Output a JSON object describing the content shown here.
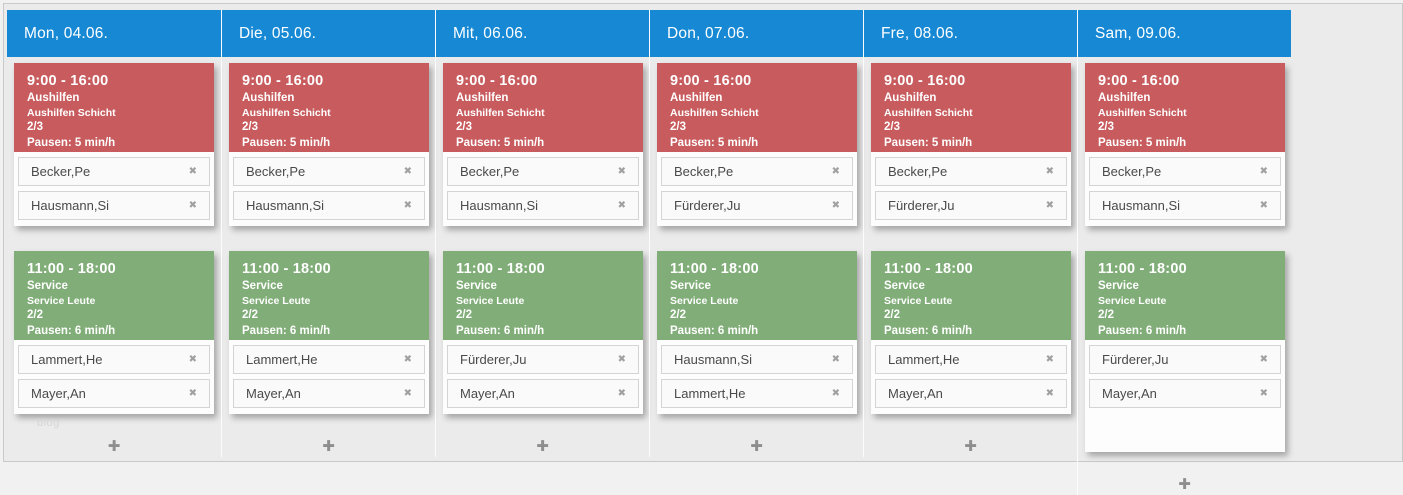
{
  "colors": {
    "header_blue": "#1789d4",
    "shift_red": "#c85b5d",
    "shift_green": "#80ad78",
    "page_bg": "#ebebeb"
  },
  "icons": {
    "remove_icon": "✖",
    "add_icon": "✚"
  },
  "watermark": "blog",
  "columns": [
    {
      "header": "Mon, 04.06.",
      "shifts": [
        {
          "time": "9:00 - 16:00",
          "group": "Aushilfen",
          "subgroup": "Aushilfen Schicht",
          "occupancy": "2/3",
          "breaks": "Pausen: 5 min/h",
          "employees": [
            "Becker,Pe",
            "Hausmann,Si"
          ]
        },
        {
          "time": "11:00 - 18:00",
          "group": "Service",
          "subgroup": "Service Leute",
          "occupancy": "2/2",
          "breaks": "Pausen: 6 min/h",
          "employees": [
            "Lammert,He",
            "Mayer,An"
          ]
        }
      ]
    },
    {
      "header": "Die, 05.06.",
      "shifts": [
        {
          "time": "9:00 - 16:00",
          "group": "Aushilfen",
          "subgroup": "Aushilfen Schicht",
          "occupancy": "2/3",
          "breaks": "Pausen: 5 min/h",
          "employees": [
            "Becker,Pe",
            "Hausmann,Si"
          ]
        },
        {
          "time": "11:00 - 18:00",
          "group": "Service",
          "subgroup": "Service Leute",
          "occupancy": "2/2",
          "breaks": "Pausen: 6 min/h",
          "employees": [
            "Lammert,He",
            "Mayer,An"
          ]
        }
      ]
    },
    {
      "header": "Mit, 06.06.",
      "shifts": [
        {
          "time": "9:00 - 16:00",
          "group": "Aushilfen",
          "subgroup": "Aushilfen Schicht",
          "occupancy": "2/3",
          "breaks": "Pausen: 5 min/h",
          "employees": [
            "Becker,Pe",
            "Hausmann,Si"
          ]
        },
        {
          "time": "11:00 - 18:00",
          "group": "Service",
          "subgroup": "Service Leute",
          "occupancy": "2/2",
          "breaks": "Pausen: 6 min/h",
          "employees": [
            "Fürderer,Ju",
            "Mayer,An"
          ]
        }
      ]
    },
    {
      "header": "Don, 07.06.",
      "shifts": [
        {
          "time": "9:00 - 16:00",
          "group": "Aushilfen",
          "subgroup": "Aushilfen Schicht",
          "occupancy": "2/3",
          "breaks": "Pausen: 5 min/h",
          "employees": [
            "Becker,Pe",
            "Fürderer,Ju"
          ]
        },
        {
          "time": "11:00 - 18:00",
          "group": "Service",
          "subgroup": "Service Leute",
          "occupancy": "2/2",
          "breaks": "Pausen: 6 min/h",
          "employees": [
            "Hausmann,Si",
            "Lammert,He"
          ]
        }
      ]
    },
    {
      "header": "Fre, 08.06.",
      "shifts": [
        {
          "time": "9:00 - 16:00",
          "group": "Aushilfen",
          "subgroup": "Aushilfen Schicht",
          "occupancy": "2/3",
          "breaks": "Pausen: 5 min/h",
          "employees": [
            "Becker,Pe",
            "Fürderer,Ju"
          ]
        },
        {
          "time": "11:00 - 18:00",
          "group": "Service",
          "subgroup": "Service Leute",
          "occupancy": "2/2",
          "breaks": "Pausen: 6 min/h",
          "employees": [
            "Lammert,He",
            "Mayer,An"
          ]
        }
      ]
    },
    {
      "header": "Sam, 09.06.",
      "shifts": [
        {
          "time": "9:00 - 16:00",
          "group": "Aushilfen",
          "subgroup": "Aushilfen Schicht",
          "occupancy": "2/3",
          "breaks": "Pausen: 5 min/h",
          "employees": [
            "Becker,Pe",
            "Hausmann,Si"
          ]
        },
        {
          "time": "11:00 - 18:00",
          "group": "Service",
          "subgroup": "Service Leute",
          "occupancy": "2/2",
          "breaks": "Pausen: 6 min/h",
          "employees": [
            "Fürderer,Ju",
            "Mayer,An"
          ]
        }
      ]
    }
  ]
}
